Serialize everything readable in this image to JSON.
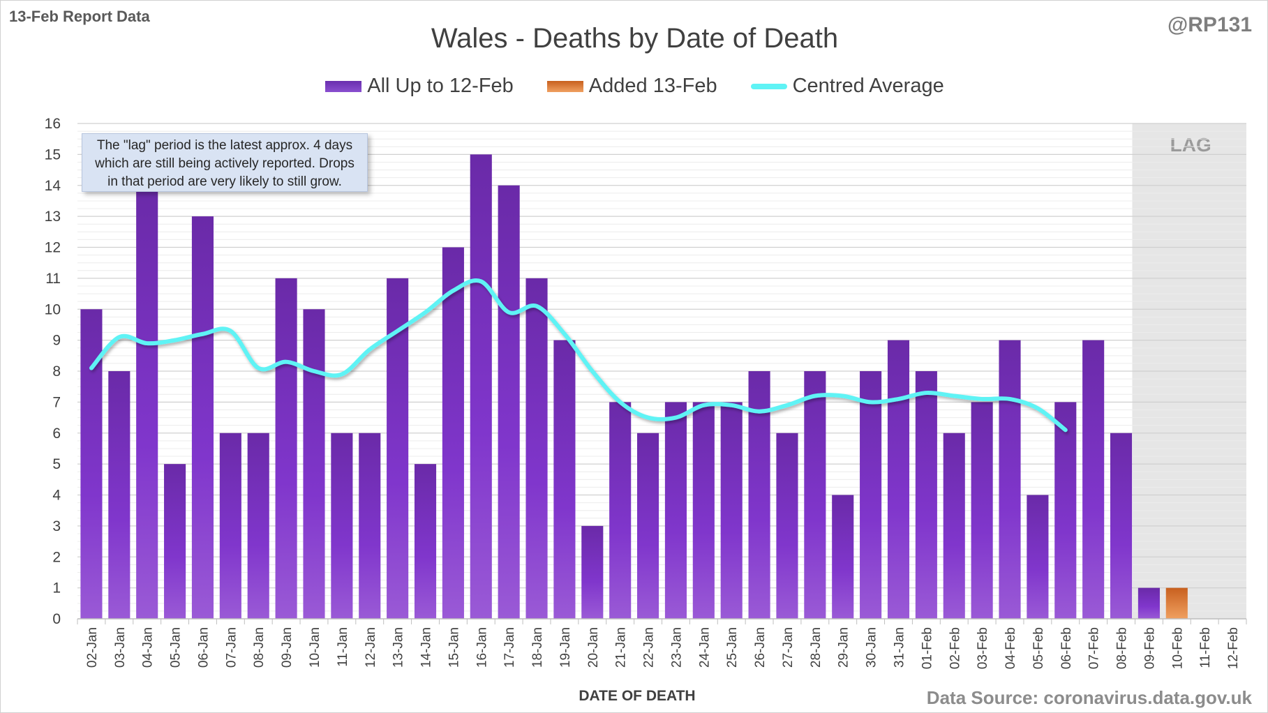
{
  "header": {
    "report_label": "13-Feb Report Data",
    "handle": "@RP131",
    "source": "Data Source: coronavirus.data.gov.uk"
  },
  "callout": {
    "line1": "The \"lag\" period is the latest approx. 4 days",
    "line2": "which are still being actively reported.  Drops",
    "line3": "in that period are very likely to still grow."
  },
  "colors": {
    "bar_main": "#7a3dc4",
    "bar_added": "#e07a33",
    "avg_line": "#5ff3f5",
    "lag_shade": "#e6e6e6"
  },
  "chart_data": {
    "type": "bar",
    "title": "Wales - Deaths by Date of Death",
    "xlabel": "DATE OF DEATH",
    "ylabel": "",
    "ylim": [
      0,
      16
    ],
    "yticks": [
      0,
      1,
      2,
      3,
      4,
      5,
      6,
      7,
      8,
      9,
      10,
      11,
      12,
      13,
      14,
      15,
      16
    ],
    "grid": true,
    "legend_position": "top-center",
    "lag_label": "LAG",
    "lag_start_category": "09-Feb",
    "categories": [
      "02-Jan",
      "03-Jan",
      "04-Jan",
      "05-Jan",
      "06-Jan",
      "07-Jan",
      "08-Jan",
      "09-Jan",
      "10-Jan",
      "11-Jan",
      "12-Jan",
      "13-Jan",
      "14-Jan",
      "15-Jan",
      "16-Jan",
      "17-Jan",
      "18-Jan",
      "19-Jan",
      "20-Jan",
      "21-Jan",
      "22-Jan",
      "23-Jan",
      "24-Jan",
      "25-Jan",
      "26-Jan",
      "27-Jan",
      "28-Jan",
      "29-Jan",
      "30-Jan",
      "31-Jan",
      "01-Feb",
      "02-Feb",
      "03-Feb",
      "04-Feb",
      "05-Feb",
      "06-Feb",
      "07-Feb",
      "08-Feb",
      "09-Feb",
      "10-Feb",
      "11-Feb",
      "12-Feb"
    ],
    "series": [
      {
        "name": "All Up to 12-Feb",
        "kind": "bar",
        "values": [
          10,
          8,
          14,
          5,
          13,
          6,
          6,
          11,
          10,
          6,
          6,
          11,
          5,
          12,
          15,
          14,
          11,
          9,
          3,
          7,
          6,
          7,
          7,
          7,
          8,
          6,
          8,
          4,
          8,
          9,
          8,
          6,
          7,
          9,
          4,
          7,
          9,
          6,
          1,
          0,
          0,
          0
        ]
      },
      {
        "name": "Added 13-Feb",
        "kind": "bar",
        "values": [
          0,
          0,
          0,
          0,
          0,
          0,
          0,
          0,
          0,
          0,
          0,
          0,
          0,
          0,
          0,
          0,
          0,
          0,
          0,
          0,
          0,
          0,
          0,
          0,
          0,
          0,
          0,
          0,
          0,
          0,
          0,
          0,
          0,
          0,
          0,
          0,
          0,
          0,
          0,
          1,
          0,
          0
        ]
      },
      {
        "name": "Centred Average",
        "kind": "line",
        "values": [
          8.1,
          9.1,
          8.9,
          9.0,
          9.2,
          9.3,
          8.1,
          8.3,
          8.0,
          7.9,
          8.7,
          9.3,
          9.9,
          10.6,
          10.9,
          9.9,
          10.1,
          9.2,
          8.0,
          7.0,
          6.5,
          6.5,
          6.9,
          6.9,
          6.7,
          6.9,
          7.2,
          7.2,
          7.0,
          7.1,
          7.3,
          7.2,
          7.1,
          7.1,
          6.8,
          6.1,
          null,
          null,
          null,
          null,
          null,
          null
        ]
      }
    ]
  }
}
